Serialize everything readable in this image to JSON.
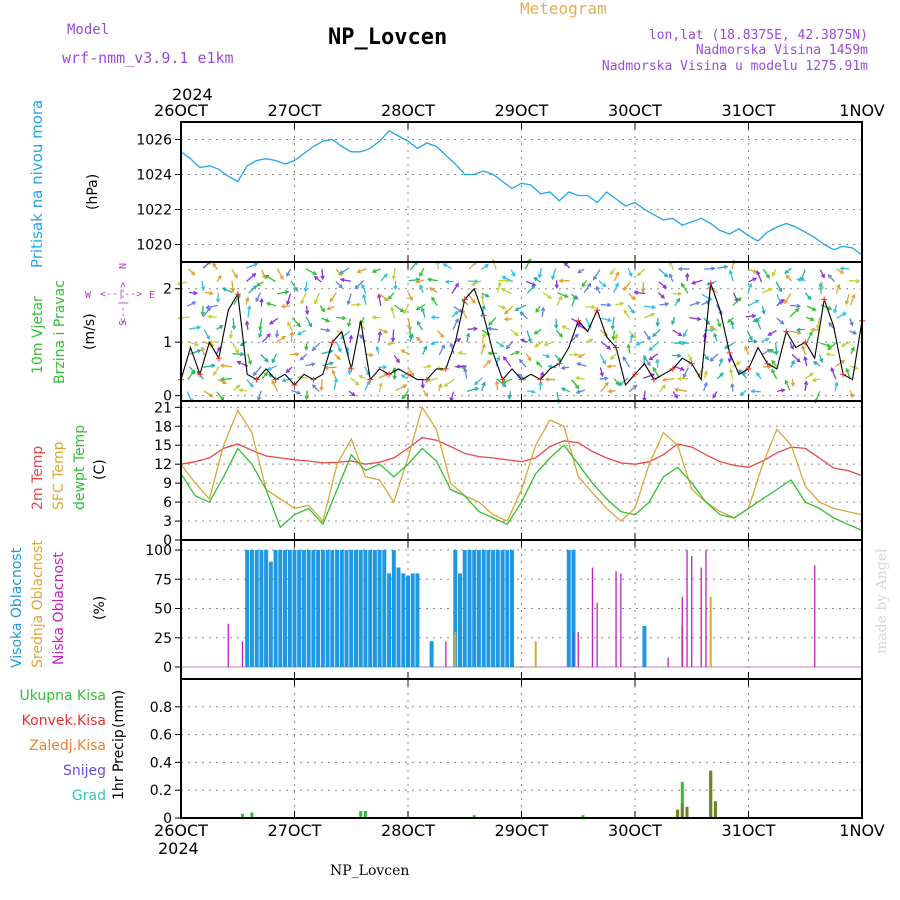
{
  "header": {
    "model_label": "Model",
    "model_name": "wrf-nmm_v3.9.1  e1km",
    "station": "NP_Lovcen",
    "product": "Meteogram",
    "lonlat": "lon,lat (18.8375E, 42.3875N)",
    "elevation": "Nadmorska Visina 1459m",
    "model_elevation": "Nadmorska Visina u modelu 1275.91m",
    "footer_station": "NP_Lovcen",
    "credit": "made by Angel"
  },
  "time_axis": {
    "year": "2024",
    "ticks": [
      "26OCT",
      "27OCT",
      "28OCT",
      "29OCT",
      "30OCT",
      "31OCT",
      "1NOV"
    ],
    "range_hours": [
      0,
      144
    ]
  },
  "colors": {
    "pressure": "#1fa6e8",
    "wind_speed": "#000000",
    "gust_marker": "#e83030",
    "temp_2m": "#e84848",
    "temp_sfc": "#d8a838",
    "dewpoint": "#30c030",
    "cloud_high": "#1e98e0",
    "cloud_mid": "#d8a838",
    "cloud_low": "#c020c0",
    "precip_total": "#30c030",
    "precip_conv": "#e83030",
    "precip_frozen": "#f08030",
    "precip_snow": "#6050e0",
    "precip_graupel": "#30c8b0"
  },
  "chart_data": [
    {
      "type": "line",
      "ylabel": "Pritisak na nivou mora",
      "unit": "(hPa)",
      "ylim": [
        1019,
        1027
      ],
      "yticks": [
        1020,
        1022,
        1024,
        1026
      ],
      "series": [
        {
          "x": [
            0,
            2,
            4,
            6,
            8,
            10,
            12,
            14,
            16,
            18,
            20,
            22,
            24,
            26,
            28,
            30,
            32,
            34,
            36,
            38,
            40,
            42,
            44,
            46,
            48,
            50,
            52,
            54,
            56,
            58,
            60,
            62,
            64,
            66,
            68,
            70,
            72,
            74,
            76,
            78,
            80,
            82,
            84,
            86,
            88,
            90,
            92,
            94,
            96,
            98,
            100,
            102,
            104,
            106,
            108,
            110,
            112,
            114,
            116,
            118,
            120,
            122,
            124,
            126,
            128,
            130,
            132,
            134,
            136,
            138,
            140,
            142,
            144
          ],
          "values": [
            1025.3,
            1024.9,
            1024.4,
            1024.5,
            1024.3,
            1023.9,
            1023.6,
            1024.5,
            1024.8,
            1024.9,
            1024.8,
            1024.6,
            1024.8,
            1025.2,
            1025.6,
            1025.9,
            1026.0,
            1025.6,
            1025.3,
            1025.3,
            1025.5,
            1025.9,
            1026.5,
            1026.2,
            1025.9,
            1025.5,
            1025.8,
            1025.6,
            1025.1,
            1024.6,
            1024.0,
            1024.0,
            1024.2,
            1024.0,
            1023.6,
            1023.2,
            1023.5,
            1023.4,
            1022.9,
            1023.0,
            1022.5,
            1023.0,
            1022.8,
            1022.8,
            1022.4,
            1023.0,
            1022.6,
            1022.2,
            1022.4,
            1022.0,
            1021.7,
            1021.4,
            1021.5,
            1021.1,
            1021.3,
            1021.5,
            1021.2,
            1020.8,
            1020.6,
            1020.9,
            1020.5,
            1020.2,
            1020.7,
            1021.0,
            1021.2,
            1021.0,
            1020.7,
            1020.4,
            1020.0,
            1019.7,
            1019.9,
            1019.8,
            1019.4
          ]
        }
      ]
    },
    {
      "type": "line",
      "ylabel": "10m Vjetar Brzina i Pravac",
      "unit": "(m/s)",
      "compass": [
        "N",
        "S",
        "W",
        "E"
      ],
      "ylim": [
        -0.1,
        2.5
      ],
      "yticks": [
        0,
        1,
        2
      ],
      "series": [
        {
          "x": [
            0,
            2,
            4,
            6,
            8,
            10,
            12,
            14,
            16,
            18,
            20,
            22,
            24,
            26,
            28,
            30,
            32,
            34,
            36,
            38,
            40,
            42,
            44,
            46,
            48,
            50,
            52,
            54,
            56,
            58,
            60,
            62,
            64,
            66,
            68,
            70,
            72,
            74,
            76,
            78,
            80,
            82,
            84,
            86,
            88,
            90,
            92,
            94,
            96,
            98,
            100,
            102,
            104,
            106,
            108,
            110,
            112,
            114,
            116,
            118,
            120,
            122,
            124,
            126,
            128,
            130,
            132,
            134,
            136,
            138,
            140,
            142,
            144
          ],
          "values": [
            0.3,
            0.9,
            0.4,
            1.0,
            0.7,
            1.6,
            1.9,
            0.4,
            0.3,
            0.5,
            0.3,
            0.4,
            0.2,
            0.4,
            0.3,
            0.4,
            1.0,
            1.2,
            0.5,
            1.4,
            0.3,
            0.5,
            0.4,
            0.5,
            0.4,
            0.3,
            0.3,
            0.5,
            0.5,
            1.0,
            1.8,
            2.0,
            1.5,
            0.8,
            0.3,
            0.5,
            0.3,
            0.4,
            0.3,
            0.5,
            0.6,
            0.9,
            1.4,
            1.2,
            1.6,
            1.1,
            0.9,
            0.2,
            0.4,
            0.6,
            0.3,
            0.4,
            0.5,
            0.7,
            0.6,
            0.3,
            2.1,
            1.6,
            0.8,
            0.4,
            0.5,
            0.9,
            0.6,
            0.5,
            1.2,
            0.9,
            1.0,
            0.7,
            1.8,
            1.3,
            0.4,
            0.3,
            1.4
          ]
        }
      ]
    },
    {
      "type": "line",
      "ylabel": "2m Temp / SFC Temp / dewpt Temp",
      "unit": "(C)",
      "ylim": [
        0,
        22
      ],
      "yticks": [
        0,
        3,
        6,
        9,
        12,
        15,
        18,
        21
      ],
      "series": [
        {
          "name": "2m Temp",
          "x": [
            0,
            3,
            6,
            9,
            12,
            15,
            18,
            21,
            24,
            27,
            30,
            33,
            36,
            39,
            42,
            45,
            48,
            51,
            54,
            57,
            60,
            63,
            66,
            69,
            72,
            75,
            78,
            81,
            84,
            87,
            90,
            93,
            96,
            99,
            102,
            105,
            108,
            111,
            114,
            117,
            120,
            123,
            126,
            129,
            132,
            135,
            138,
            141,
            144
          ],
          "values": [
            12.0,
            12.4,
            13.0,
            14.5,
            15.2,
            14.2,
            13.3,
            13.0,
            12.7,
            12.5,
            12.2,
            12.3,
            12.5,
            12.0,
            12.3,
            13.0,
            14.5,
            16.2,
            15.8,
            14.8,
            13.7,
            13.2,
            13.0,
            12.7,
            12.4,
            13.0,
            14.8,
            15.7,
            15.4,
            14.0,
            13.0,
            12.2,
            12.0,
            12.4,
            13.5,
            15.2,
            14.7,
            13.5,
            12.4,
            11.8,
            11.5,
            12.5,
            13.8,
            14.7,
            14.5,
            13.0,
            11.4,
            11.0,
            10.2
          ]
        },
        {
          "name": "SFC Temp",
          "x": [
            0,
            3,
            6,
            9,
            12,
            15,
            18,
            21,
            24,
            27,
            30,
            33,
            36,
            39,
            42,
            45,
            48,
            51,
            54,
            57,
            60,
            63,
            66,
            69,
            72,
            75,
            78,
            81,
            84,
            87,
            90,
            93,
            96,
            99,
            102,
            105,
            108,
            111,
            114,
            117,
            120,
            123,
            126,
            129,
            132,
            135,
            138,
            141,
            144
          ],
          "values": [
            12.0,
            9.0,
            6.5,
            15.0,
            20.5,
            17.0,
            8.0,
            6.5,
            5.0,
            5.5,
            3.0,
            12.0,
            16.0,
            10.0,
            9.5,
            6.0,
            13.0,
            21.0,
            17.5,
            9.0,
            7.0,
            6.0,
            4.0,
            3.0,
            8.0,
            15.0,
            19.0,
            18.0,
            10.0,
            7.5,
            5.0,
            3.0,
            5.0,
            12.0,
            17.0,
            15.0,
            8.0,
            6.0,
            4.5,
            3.5,
            5.0,
            12.0,
            17.5,
            15.0,
            8.5,
            6.0,
            5.0,
            4.5,
            4.0
          ]
        },
        {
          "name": "dewpt Temp",
          "x": [
            0,
            3,
            6,
            9,
            12,
            15,
            18,
            21,
            24,
            27,
            30,
            33,
            36,
            39,
            42,
            45,
            48,
            51,
            54,
            57,
            60,
            63,
            66,
            69,
            72,
            75,
            78,
            81,
            84,
            87,
            90,
            93,
            96,
            99,
            102,
            105,
            108,
            111,
            114,
            117,
            120,
            123,
            126,
            129,
            132,
            135,
            138,
            141,
            144
          ],
          "values": [
            10.5,
            7.0,
            6.0,
            10.0,
            14.5,
            12.0,
            8.0,
            2.0,
            4.0,
            5.0,
            2.5,
            8.0,
            13.5,
            11.0,
            12.0,
            10.0,
            12.0,
            14.5,
            12.5,
            8.0,
            7.0,
            4.5,
            3.5,
            2.5,
            6.0,
            10.5,
            13.0,
            15.0,
            12.0,
            9.0,
            6.5,
            4.5,
            4.0,
            6.0,
            10.0,
            11.5,
            9.0,
            6.0,
            4.0,
            3.5,
            5.0,
            6.5,
            8.0,
            9.5,
            6.0,
            5.0,
            3.5,
            2.5,
            1.5
          ]
        }
      ]
    },
    {
      "type": "bar",
      "ylabel": "Visoka Oblacnost / Srednja Oblacnost / Niska Oblacnost",
      "unit": "(%)",
      "ylim": [
        0,
        100
      ],
      "yticks": [
        0,
        25,
        50,
        75,
        100
      ],
      "series": [
        {
          "name": "Visoka Oblacnost",
          "x": [
            14,
            15,
            16,
            17,
            18,
            19,
            20,
            21,
            22,
            23,
            24,
            25,
            26,
            27,
            28,
            29,
            30,
            31,
            32,
            33,
            34,
            35,
            36,
            37,
            38,
            39,
            40,
            41,
            42,
            43,
            44,
            45,
            46,
            47,
            48,
            49,
            50,
            53,
            58,
            59,
            60,
            61,
            62,
            63,
            64,
            65,
            66,
            67,
            68,
            69,
            70,
            82,
            83,
            98
          ],
          "values": [
            100,
            100,
            100,
            100,
            100,
            90,
            100,
            100,
            100,
            100,
            100,
            100,
            100,
            100,
            100,
            100,
            100,
            100,
            100,
            100,
            100,
            100,
            100,
            100,
            100,
            100,
            100,
            100,
            100,
            100,
            80,
            100,
            85,
            80,
            78,
            80,
            80,
            22,
            100,
            80,
            100,
            100,
            100,
            100,
            100,
            100,
            100,
            100,
            100,
            100,
            100,
            100,
            100,
            35
          ]
        },
        {
          "name": "Srednja Oblacnost",
          "x": [
            58,
            75,
            106,
            112
          ],
          "values": [
            30,
            22,
            35,
            60
          ]
        },
        {
          "name": "Niska Oblacnost",
          "x": [
            10,
            13,
            56,
            83,
            84,
            87,
            88,
            92,
            93,
            103,
            106,
            107,
            108,
            110,
            111,
            134
          ],
          "values": [
            37,
            22,
            22,
            30,
            30,
            85,
            55,
            82,
            80,
            8,
            60,
            100,
            95,
            85,
            100,
            87
          ]
        }
      ]
    },
    {
      "type": "bar",
      "ylabel": "1hr Precip",
      "unit": "(mm)",
      "ylim": [
        0,
        1.0
      ],
      "yticks": [
        0,
        0.2,
        0.4,
        0.6,
        0.8
      ],
      "legend": [
        "Ukupna Kisa",
        "Konvek.Kisa",
        "Zaledj.Kisa",
        "Snijeg",
        "Grad"
      ],
      "series": [
        {
          "name": "Ukupna Kisa",
          "x": [
            13,
            15,
            38,
            39,
            62,
            85,
            105,
            106,
            107,
            112,
            113
          ],
          "values": [
            0.03,
            0.04,
            0.05,
            0.05,
            0.02,
            0.02,
            0.06,
            0.26,
            0.08,
            0.34,
            0.12
          ]
        },
        {
          "name": "Konvek.Kisa",
          "x": [
            105,
            106,
            107,
            112,
            113
          ],
          "values": [
            0.06,
            0.1,
            0.08,
            0.34,
            0.12
          ]
        }
      ]
    }
  ]
}
